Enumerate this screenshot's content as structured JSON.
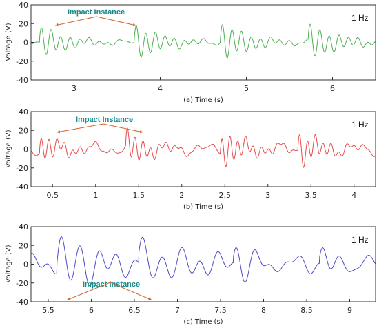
{
  "chart_data": [
    {
      "type": "line",
      "ylabel": "Voltage (V)",
      "xlabel": "(a) Time (s)",
      "freq_label": "1 Hz",
      "annotation": "Impact Instance",
      "xlim": [
        2.5,
        6.5
      ],
      "ylim": [
        -40,
        40
      ],
      "xticks": [
        3,
        4,
        5,
        6
      ],
      "yticks": [
        -40,
        -20,
        0,
        20,
        40
      ],
      "color": "#4caf50",
      "impacts": [
        2.78,
        3.72
      ],
      "bursts": [
        {
          "t": 2.6,
          "amp": 17,
          "f": 9,
          "dur": 0.32
        },
        {
          "t": 3.7,
          "amp": 18,
          "f": 9,
          "dur": 0.34
        },
        {
          "t": 4.7,
          "amp": 19,
          "f": 9,
          "dur": 0.35
        },
        {
          "t": 5.72,
          "amp": 18,
          "f": 9,
          "dur": 0.36
        }
      ],
      "baseline_amp": 3
    },
    {
      "type": "line",
      "ylabel": "Voltage (V)",
      "xlabel": "(b) Time (s)",
      "freq_label": "1 Hz",
      "annotation": "Impact Instance",
      "xlim": [
        0.25,
        4.25
      ],
      "ylim": [
        -40,
        40
      ],
      "xticks": [
        0.5,
        1,
        1.5,
        2,
        2.5,
        3,
        3.5,
        4
      ],
      "yticks": [
        -40,
        -20,
        0,
        20,
        40
      ],
      "color": "#e84a4a",
      "impacts": [
        0.55,
        1.55
      ],
      "bursts": [
        {
          "t": 0.35,
          "amp": 14,
          "f": 11,
          "dur": 0.3
        },
        {
          "t": 1.35,
          "amp": 17,
          "f": 11,
          "dur": 0.28
        },
        {
          "t": 2.45,
          "amp": 18,
          "f": 11,
          "dur": 0.32
        },
        {
          "t": 3.35,
          "amp": 17,
          "f": 11,
          "dur": 0.3
        }
      ],
      "baseline_amp": 7
    },
    {
      "type": "line",
      "ylabel": "Voltage (V)",
      "xlabel": "(c) Time (s)",
      "freq_label": "1 Hz",
      "annotation": "Impact Instance",
      "xlim": [
        5.3,
        9.3
      ],
      "ylim": [
        -40,
        40
      ],
      "xticks": [
        5.5,
        6,
        6.5,
        7,
        7.5,
        8,
        8.5,
        9
      ],
      "yticks": [
        -40,
        -20,
        0,
        20,
        40
      ],
      "color": "#4a4ac8",
      "impacts": [
        5.72,
        6.7
      ],
      "bursts": [
        {
          "t": 5.6,
          "amp": 34,
          "f": 4.5,
          "dur": 0.35
        },
        {
          "t": 6.55,
          "amp": 32,
          "f": 4.5,
          "dur": 0.35
        },
        {
          "t": 7.65,
          "amp": 22,
          "f": 4.5,
          "dur": 0.3
        },
        {
          "t": 8.65,
          "amp": 22,
          "f": 4.5,
          "dur": 0.3
        }
      ],
      "baseline_amp": 12
    }
  ]
}
